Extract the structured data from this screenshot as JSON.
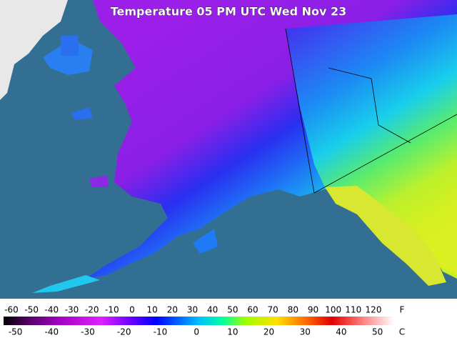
{
  "header": {
    "title": "Temperature 05 PM UTC Wed Nov 23"
  },
  "legend": {
    "fahrenheit": {
      "unit": "F",
      "ticks": [
        -60,
        -50,
        -40,
        -30,
        -20,
        -10,
        0,
        10,
        20,
        30,
        40,
        50,
        60,
        70,
        80,
        90,
        100,
        110,
        120
      ]
    },
    "celsius": {
      "unit": "C",
      "ticks": [
        -50,
        -40,
        -30,
        -20,
        -10,
        0,
        10,
        20,
        30,
        40,
        50
      ]
    }
  }
}
